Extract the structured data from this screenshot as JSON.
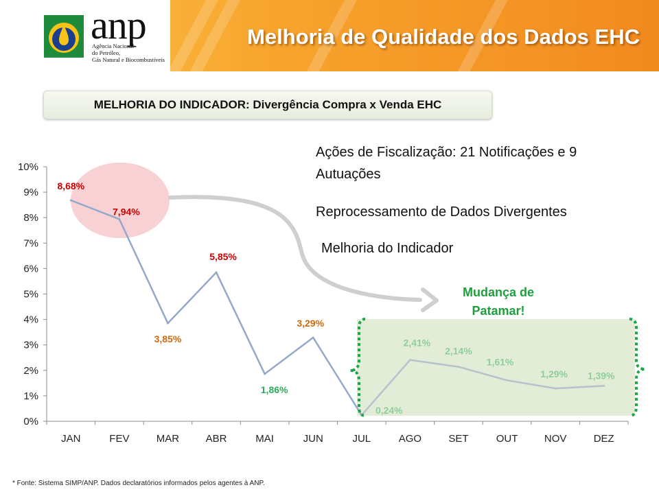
{
  "header": {
    "title": "Melhoria de Qualidade dos Dados EHC",
    "logo_text": "anp",
    "logo_subtitle": [
      "Agência Nacional",
      "do Petróleo,",
      "Gás Natural e Biocombustíveis"
    ]
  },
  "subtitle": "MELHORIA DO INDICADOR: Divergência Compra x Venda EHC",
  "bullets": {
    "actions_line1": "Ações de Fiscalização:  21 Notificações e 9",
    "actions_line2": "Autuações",
    "reprocess": "Reprocessamento de Dados Divergentes",
    "improvement": "Melhoria do Indicador"
  },
  "annotation": {
    "line1": "Mudança de",
    "line2": "Patamar!"
  },
  "footnote": "*  Fonte: Sistema SIMP/ANP. Dados declaratórios informados pelos agentes à ANP.",
  "colors": {
    "line": "#94a8c8",
    "line_after": "#b6c2cc",
    "label_red": "#cc0000",
    "label_orange": "#d06a10",
    "label_green": "#2eaa5a",
    "label_lightgreen": "#8ecf9a",
    "annotation_green": "#1f9e3e",
    "highlight_ellipse": "#f7c9cc",
    "new_level_box": "#e2ecd6"
  },
  "chart_data": {
    "type": "line",
    "categories": [
      "JAN",
      "FEV",
      "MAR",
      "ABR",
      "MAI",
      "JUN",
      "JUL",
      "AGO",
      "SET",
      "OUT",
      "NOV",
      "DEZ"
    ],
    "values": [
      8.68,
      7.94,
      3.85,
      5.85,
      1.86,
      3.29,
      0.24,
      2.41,
      2.14,
      1.61,
      1.29,
      1.39
    ],
    "data_labels": [
      "8,68%",
      "7,94%",
      "3,85%",
      "5,85%",
      "1,86%",
      "3,29%",
      "0,24%",
      "2,41%",
      "2,14%",
      "1,61%",
      "1,29%",
      "1,39%"
    ],
    "label_colors": [
      "red",
      "red",
      "orange",
      "red",
      "green",
      "orange",
      "lightgreen",
      "lightgreen",
      "lightgreen",
      "lightgreen",
      "lightgreen",
      "lightgreen"
    ],
    "y_ticks": [
      "0%",
      "1%",
      "2%",
      "3%",
      "4%",
      "5%",
      "6%",
      "7%",
      "8%",
      "9%",
      "10%"
    ],
    "ylim": [
      0,
      10
    ],
    "grid": false,
    "title": "",
    "xlabel": "",
    "ylabel": ""
  }
}
